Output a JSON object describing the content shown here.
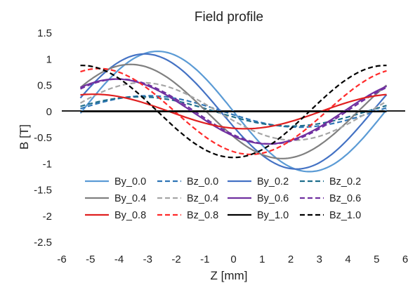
{
  "chart_data": {
    "type": "line",
    "title": "Field profile",
    "xlabel": "Z [mm]",
    "ylabel": "B [T]",
    "xlim": [
      -6,
      6
    ],
    "ylim": [
      -2.5,
      1.5
    ],
    "xticks": [
      -6,
      -5,
      -4,
      -3,
      -2,
      -1,
      0,
      1,
      2,
      3,
      4,
      5,
      6
    ],
    "yticks": [
      1.5,
      1,
      0.5,
      0,
      -0.5,
      -1,
      -1.5,
      -2,
      -2.5
    ],
    "xtick_labels": [
      "-6",
      "-5",
      "-4",
      "-3",
      "-2",
      "-1",
      "0",
      "1",
      "2",
      "3",
      "4",
      "5",
      "6"
    ],
    "ytick_labels": [
      "1.5",
      "1",
      "0.5",
      "0",
      "-0.5",
      "-1",
      "-1.5",
      "-2",
      "-2.5"
    ],
    "grid": false,
    "legend_position": "bottom-inside",
    "x_range_data": [
      -5.35,
      5.35
    ],
    "series": [
      {
        "name": "By_0.0",
        "color": "#5B9BD5",
        "dash": "solid",
        "kind": "sin",
        "amp": 1.15,
        "center": -2.65,
        "period": 10.6
      },
      {
        "name": "Bz_0.0",
        "color": "#2E75B6",
        "dash": "dashed",
        "kind": "sin",
        "amp": 0.3,
        "center": -3.0,
        "period": 10.6
      },
      {
        "name": "By_0.2",
        "color": "#4472C4",
        "dash": "solid",
        "kind": "sin",
        "amp": 1.1,
        "center": -3.1,
        "period": 10.6
      },
      {
        "name": "Bz_0.2",
        "color": "#1F6E8C",
        "dash": "dashed",
        "kind": "sin",
        "amp": 0.28,
        "center": -3.3,
        "period": 10.6
      },
      {
        "name": "By_0.4",
        "color": "#808080",
        "dash": "solid",
        "kind": "sin",
        "amp": 0.9,
        "center": -3.6,
        "period": 10.6
      },
      {
        "name": "Bz_0.4",
        "color": "#A6A6A6",
        "dash": "dashed",
        "kind": "sin",
        "amp": 0.55,
        "center": -3.2,
        "period": 10.6
      },
      {
        "name": "By_0.6",
        "color": "#7030A0",
        "dash": "solid",
        "kind": "sin",
        "amp": 0.62,
        "center": -4.1,
        "period": 10.6
      },
      {
        "name": "Bz_0.6",
        "color": "#7030A0",
        "dash": "dashed",
        "kind": "sin",
        "amp": 0.62,
        "center": -4.0,
        "period": 10.6
      },
      {
        "name": "By_0.8",
        "color": "#E02020",
        "dash": "solid",
        "kind": "sin",
        "amp": 0.33,
        "center": -4.9,
        "period": 10.6
      },
      {
        "name": "Bz_0.8",
        "color": "#FF2A2A",
        "dash": "dashed",
        "kind": "sin",
        "amp": 0.82,
        "center": -4.7,
        "period": 10.6
      },
      {
        "name": "By_1.0",
        "color": "#000000",
        "dash": "solid",
        "kind": "flat",
        "amp": 0,
        "center": 0,
        "period": 10.6
      },
      {
        "name": "Bz_1.0",
        "color": "#000000",
        "dash": "dashed",
        "kind": "sin",
        "amp": 0.88,
        "center": -5.3,
        "period": 10.6
      }
    ]
  }
}
